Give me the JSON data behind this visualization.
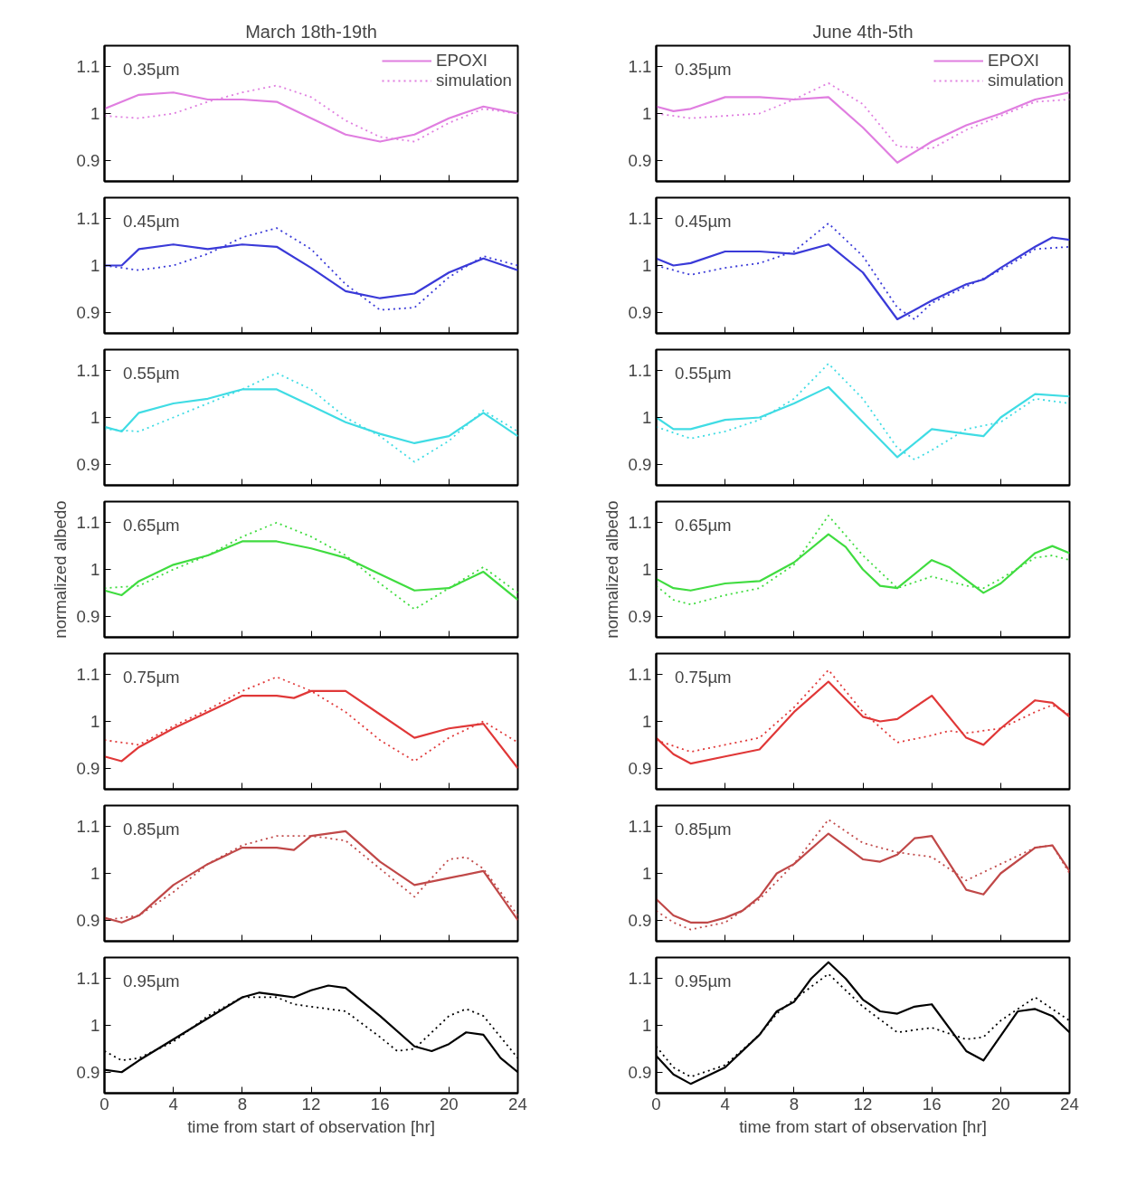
{
  "chart_data": [
    {
      "type": "line",
      "title": "March 18th-19th",
      "annotations": [
        "0.35µm"
      ],
      "xlim": [
        0,
        24
      ],
      "xticks": [
        0,
        4,
        8,
        12,
        16,
        20,
        24
      ],
      "ylim": [
        0.855,
        1.145
      ],
      "yticks": [
        0.9,
        1,
        1.1
      ],
      "tick_labels": "y",
      "legend": "top right",
      "grid": false,
      "series": [
        {
          "name": "EPOXI",
          "color": "#e07ee0",
          "line_style": "solid",
          "x": [
            0,
            2,
            4,
            6,
            8,
            10,
            12,
            14,
            16,
            18,
            20,
            22,
            24
          ],
          "values": [
            1.01,
            1.04,
            1.045,
            1.03,
            1.03,
            1.025,
            0.99,
            0.955,
            0.94,
            0.955,
            0.99,
            1.015,
            1.0
          ]
        },
        {
          "name": "simulation",
          "color": "#e07ee0",
          "line_style": "dotted",
          "x": [
            0,
            2,
            4,
            6,
            8,
            10,
            12,
            14,
            16,
            18,
            20,
            22,
            24
          ],
          "values": [
            0.995,
            0.99,
            1.0,
            1.025,
            1.045,
            1.06,
            1.035,
            0.985,
            0.95,
            0.94,
            0.98,
            1.01,
            1.0
          ]
        }
      ]
    },
    {
      "type": "line",
      "title": "June 4th-5th",
      "annotations": [
        "0.35µm"
      ],
      "xlim": [
        0,
        24
      ],
      "xticks": [
        0,
        4,
        8,
        12,
        16,
        20,
        24
      ],
      "ylim": [
        0.855,
        1.145
      ],
      "yticks": [
        0.9,
        1,
        1.1
      ],
      "tick_labels": "y",
      "legend": "top right",
      "grid": false,
      "series": [
        {
          "name": "EPOXI",
          "color": "#e07ee0",
          "line_style": "solid",
          "x": [
            0,
            1,
            2,
            4,
            6,
            8,
            10,
            12,
            14,
            16,
            18,
            20,
            22,
            24
          ],
          "values": [
            1.015,
            1.005,
            1.01,
            1.035,
            1.035,
            1.03,
            1.035,
            0.97,
            0.895,
            0.94,
            0.975,
            1.0,
            1.03,
            1.045
          ]
        },
        {
          "name": "simulation",
          "color": "#e07ee0",
          "line_style": "dotted",
          "x": [
            0,
            2,
            4,
            6,
            8,
            10,
            12,
            14,
            16,
            18,
            20,
            22,
            24
          ],
          "values": [
            1.0,
            0.99,
            0.995,
            1.0,
            1.03,
            1.065,
            1.02,
            0.93,
            0.925,
            0.965,
            0.995,
            1.025,
            1.03
          ]
        }
      ]
    },
    {
      "type": "line",
      "annotations": [
        "0.45µm"
      ],
      "xlim": [
        0,
        24
      ],
      "xticks": [
        0,
        4,
        8,
        12,
        16,
        20,
        24
      ],
      "ylim": [
        0.855,
        1.145
      ],
      "yticks": [
        0.9,
        1,
        1.1
      ],
      "tick_labels": "y",
      "grid": false,
      "series": [
        {
          "color": "#3a3ad8",
          "line_style": "solid",
          "x": [
            0,
            1,
            2,
            4,
            6,
            8,
            10,
            12,
            14,
            16,
            18,
            20,
            22,
            24
          ],
          "values": [
            1.0,
            1.0,
            1.035,
            1.045,
            1.035,
            1.045,
            1.04,
            0.995,
            0.945,
            0.93,
            0.94,
            0.985,
            1.015,
            0.99
          ]
        },
        {
          "color": "#3a3ad8",
          "line_style": "dotted",
          "x": [
            0,
            2,
            4,
            6,
            8,
            10,
            12,
            14,
            16,
            18,
            20,
            22,
            24
          ],
          "values": [
            1.0,
            0.99,
            1.0,
            1.025,
            1.06,
            1.08,
            1.035,
            0.96,
            0.905,
            0.91,
            0.975,
            1.02,
            1.0
          ]
        }
      ]
    },
    {
      "type": "line",
      "annotations": [
        "0.45µm"
      ],
      "xlim": [
        0,
        24
      ],
      "xticks": [
        0,
        4,
        8,
        12,
        16,
        20,
        24
      ],
      "ylim": [
        0.855,
        1.145
      ],
      "yticks": [
        0.9,
        1,
        1.1
      ],
      "tick_labels": "y",
      "grid": false,
      "series": [
        {
          "color": "#3a3ad8",
          "line_style": "solid",
          "x": [
            0,
            1,
            2,
            4,
            6,
            8,
            10,
            12,
            14,
            16,
            18,
            19,
            20,
            22,
            23,
            24
          ],
          "values": [
            1.015,
            1.0,
            1.005,
            1.03,
            1.03,
            1.025,
            1.045,
            0.985,
            0.885,
            0.925,
            0.96,
            0.97,
            0.995,
            1.04,
            1.06,
            1.055
          ]
        },
        {
          "color": "#3a3ad8",
          "line_style": "dotted",
          "x": [
            0,
            2,
            4,
            6,
            8,
            10,
            12,
            14,
            15,
            16,
            18,
            20,
            22,
            24
          ],
          "values": [
            1.0,
            0.98,
            0.995,
            1.005,
            1.03,
            1.09,
            1.02,
            0.91,
            0.885,
            0.92,
            0.955,
            0.99,
            1.035,
            1.04
          ]
        }
      ]
    },
    {
      "type": "line",
      "annotations": [
        "0.55µm"
      ],
      "xlim": [
        0,
        24
      ],
      "xticks": [
        0,
        4,
        8,
        12,
        16,
        20,
        24
      ],
      "ylim": [
        0.855,
        1.145
      ],
      "yticks": [
        0.9,
        1,
        1.1
      ],
      "tick_labels": "y",
      "grid": false,
      "series": [
        {
          "color": "#40dce4",
          "line_style": "solid",
          "x": [
            0,
            1,
            2,
            4,
            6,
            8,
            10,
            12,
            14,
            16,
            18,
            20,
            22,
            24
          ],
          "values": [
            0.98,
            0.97,
            1.01,
            1.03,
            1.04,
            1.06,
            1.06,
            1.025,
            0.99,
            0.965,
            0.945,
            0.96,
            1.01,
            0.96
          ]
        },
        {
          "color": "#40dce4",
          "line_style": "dotted",
          "x": [
            0,
            2,
            4,
            6,
            8,
            10,
            12,
            14,
            16,
            18,
            20,
            22,
            24
          ],
          "values": [
            0.975,
            0.97,
            1.0,
            1.03,
            1.06,
            1.095,
            1.06,
            1.0,
            0.96,
            0.905,
            0.95,
            1.015,
            0.97
          ]
        }
      ]
    },
    {
      "type": "line",
      "annotations": [
        "0.55µm"
      ],
      "xlim": [
        0,
        24
      ],
      "xticks": [
        0,
        4,
        8,
        12,
        16,
        20,
        24
      ],
      "ylim": [
        0.855,
        1.145
      ],
      "yticks": [
        0.9,
        1,
        1.1
      ],
      "tick_labels": "y",
      "grid": false,
      "series": [
        {
          "color": "#40dce4",
          "line_style": "solid",
          "x": [
            0,
            1,
            2,
            4,
            6,
            8,
            10,
            12,
            14,
            16,
            18,
            19,
            20,
            22,
            24
          ],
          "values": [
            1.0,
            0.975,
            0.975,
            0.995,
            1.0,
            1.03,
            1.065,
            0.99,
            0.915,
            0.975,
            0.965,
            0.96,
            1.0,
            1.05,
            1.045
          ]
        },
        {
          "color": "#40dce4",
          "line_style": "dotted",
          "x": [
            0,
            2,
            4,
            6,
            8,
            10,
            12,
            14,
            15,
            16,
            18,
            20,
            22,
            24
          ],
          "values": [
            0.98,
            0.955,
            0.97,
            0.995,
            1.04,
            1.115,
            1.04,
            0.935,
            0.91,
            0.93,
            0.975,
            0.99,
            1.04,
            1.03
          ]
        }
      ]
    },
    {
      "type": "line",
      "ylabel": "normalized albedo",
      "annotations": [
        "0.65µm"
      ],
      "xlim": [
        0,
        24
      ],
      "xticks": [
        0,
        4,
        8,
        12,
        16,
        20,
        24
      ],
      "ylim": [
        0.855,
        1.145
      ],
      "yticks": [
        0.9,
        1,
        1.1
      ],
      "tick_labels": "y",
      "grid": false,
      "series": [
        {
          "color": "#40dc40",
          "line_style": "solid",
          "x": [
            0,
            1,
            2,
            4,
            6,
            8,
            10,
            12,
            14,
            16,
            18,
            20,
            22,
            24
          ],
          "values": [
            0.955,
            0.945,
            0.975,
            1.01,
            1.03,
            1.06,
            1.06,
            1.045,
            1.025,
            0.99,
            0.955,
            0.96,
            0.995,
            0.935
          ]
        },
        {
          "color": "#40dc40",
          "line_style": "dotted",
          "x": [
            0,
            2,
            4,
            6,
            8,
            10,
            12,
            14,
            16,
            18,
            20,
            22,
            24
          ],
          "values": [
            0.96,
            0.965,
            1.0,
            1.03,
            1.07,
            1.1,
            1.07,
            1.03,
            0.97,
            0.915,
            0.96,
            1.005,
            0.95
          ]
        }
      ]
    },
    {
      "type": "line",
      "ylabel": "normalized albedo",
      "annotations": [
        "0.65µm"
      ],
      "xlim": [
        0,
        24
      ],
      "xticks": [
        0,
        4,
        8,
        12,
        16,
        20,
        24
      ],
      "ylim": [
        0.855,
        1.145
      ],
      "yticks": [
        0.9,
        1,
        1.1
      ],
      "tick_labels": "y",
      "grid": false,
      "series": [
        {
          "color": "#40dc40",
          "line_style": "solid",
          "x": [
            0,
            1,
            2,
            4,
            6,
            8,
            10,
            11,
            12,
            13,
            14,
            16,
            17,
            19,
            20,
            22,
            23,
            24
          ],
          "values": [
            0.98,
            0.96,
            0.955,
            0.97,
            0.975,
            1.015,
            1.075,
            1.048,
            1.0,
            0.965,
            0.96,
            1.02,
            1.005,
            0.95,
            0.97,
            1.035,
            1.05,
            1.035
          ]
        },
        {
          "color": "#40dc40",
          "line_style": "dotted",
          "x": [
            0,
            1,
            2,
            4,
            6,
            8,
            10,
            12,
            14,
            16,
            18,
            19,
            20,
            22,
            23,
            24
          ],
          "values": [
            0.965,
            0.935,
            0.925,
            0.945,
            0.96,
            1.01,
            1.115,
            1.03,
            0.96,
            0.985,
            0.965,
            0.96,
            0.98,
            1.025,
            1.03,
            1.02
          ]
        }
      ]
    },
    {
      "type": "line",
      "annotations": [
        "0.75µm"
      ],
      "xlim": [
        0,
        24
      ],
      "xticks": [
        0,
        4,
        8,
        12,
        16,
        20,
        24
      ],
      "ylim": [
        0.855,
        1.145
      ],
      "yticks": [
        0.9,
        1,
        1.1
      ],
      "tick_labels": "y",
      "grid": false,
      "series": [
        {
          "color": "#e03838",
          "line_style": "solid",
          "x": [
            0,
            1,
            2,
            4,
            6,
            8,
            10,
            11,
            12,
            14,
            16,
            18,
            20,
            22,
            24
          ],
          "values": [
            0.925,
            0.915,
            0.945,
            0.985,
            1.02,
            1.055,
            1.055,
            1.05,
            1.065,
            1.065,
            1.015,
            0.965,
            0.985,
            0.995,
            0.9
          ]
        },
        {
          "color": "#e03838",
          "line_style": "dotted",
          "x": [
            0,
            2,
            4,
            6,
            8,
            10,
            12,
            14,
            16,
            18,
            20,
            22,
            24
          ],
          "values": [
            0.96,
            0.95,
            0.99,
            1.025,
            1.065,
            1.095,
            1.065,
            1.02,
            0.96,
            0.915,
            0.965,
            1.0,
            0.955
          ]
        }
      ]
    },
    {
      "type": "line",
      "annotations": [
        "0.75µm"
      ],
      "xlim": [
        0,
        24
      ],
      "xticks": [
        0,
        4,
        8,
        12,
        16,
        20,
        24
      ],
      "ylim": [
        0.855,
        1.145
      ],
      "yticks": [
        0.9,
        1,
        1.1
      ],
      "tick_labels": "y",
      "grid": false,
      "series": [
        {
          "color": "#e03838",
          "line_style": "solid",
          "x": [
            0,
            1,
            2,
            4,
            6,
            8,
            10,
            12,
            13,
            14,
            16,
            18,
            19,
            20,
            22,
            23,
            24
          ],
          "values": [
            0.965,
            0.93,
            0.91,
            0.925,
            0.94,
            1.02,
            1.085,
            1.01,
            1.0,
            1.005,
            1.055,
            0.965,
            0.95,
            0.985,
            1.045,
            1.04,
            1.01
          ]
        },
        {
          "color": "#e03838",
          "line_style": "dotted",
          "x": [
            0,
            2,
            4,
            6,
            8,
            10,
            12,
            14,
            16,
            17,
            18,
            20,
            22,
            23,
            24
          ],
          "values": [
            0.96,
            0.935,
            0.95,
            0.965,
            1.03,
            1.11,
            1.02,
            0.955,
            0.97,
            0.98,
            0.975,
            0.985,
            1.02,
            1.035,
            1.015
          ]
        }
      ]
    },
    {
      "type": "line",
      "annotations": [
        "0.85µm"
      ],
      "xlim": [
        0,
        24
      ],
      "xticks": [
        0,
        4,
        8,
        12,
        16,
        20,
        24
      ],
      "ylim": [
        0.855,
        1.145
      ],
      "yticks": [
        0.9,
        1,
        1.1
      ],
      "tick_labels": "y",
      "grid": false,
      "series": [
        {
          "color": "#c04848",
          "line_style": "solid",
          "x": [
            0,
            1,
            2,
            4,
            6,
            8,
            10,
            11,
            12,
            14,
            16,
            18,
            20,
            22,
            24
          ],
          "values": [
            0.905,
            0.895,
            0.91,
            0.975,
            1.02,
            1.055,
            1.055,
            1.05,
            1.08,
            1.09,
            1.025,
            0.975,
            0.99,
            1.005,
            0.9
          ]
        },
        {
          "color": "#c04848",
          "line_style": "dotted",
          "x": [
            0,
            2,
            4,
            6,
            8,
            10,
            12,
            14,
            16,
            18,
            20,
            21,
            22,
            24
          ],
          "values": [
            0.9,
            0.91,
            0.96,
            1.02,
            1.06,
            1.08,
            1.08,
            1.07,
            1.01,
            0.95,
            1.03,
            1.035,
            1.01,
            0.91
          ]
        }
      ]
    },
    {
      "type": "line",
      "annotations": [
        "0.85µm"
      ],
      "xlim": [
        0,
        24
      ],
      "xticks": [
        0,
        4,
        8,
        12,
        16,
        20,
        24
      ],
      "ylim": [
        0.855,
        1.145
      ],
      "yticks": [
        0.9,
        1,
        1.1
      ],
      "tick_labels": "y",
      "grid": false,
      "series": [
        {
          "color": "#c04848",
          "line_style": "solid",
          "x": [
            0,
            1,
            2,
            3,
            4,
            5,
            6,
            7,
            8,
            10,
            12,
            13,
            14,
            15,
            16,
            18,
            19,
            20,
            22,
            23,
            24
          ],
          "values": [
            0.945,
            0.91,
            0.895,
            0.895,
            0.905,
            0.92,
            0.95,
            1.0,
            1.02,
            1.085,
            1.03,
            1.025,
            1.04,
            1.075,
            1.08,
            0.965,
            0.955,
            1.0,
            1.055,
            1.06,
            1.005
          ]
        },
        {
          "color": "#c04848",
          "line_style": "dotted",
          "x": [
            0,
            1,
            2,
            4,
            6,
            8,
            10,
            12,
            14,
            16,
            18,
            20,
            22,
            23,
            24
          ],
          "values": [
            0.92,
            0.895,
            0.88,
            0.895,
            0.945,
            1.02,
            1.115,
            1.065,
            1.045,
            1.035,
            0.985,
            1.02,
            1.055,
            1.06,
            1.0
          ]
        }
      ]
    },
    {
      "type": "line",
      "xlabel": "time from start of observation [hr]",
      "annotations": [
        "0.95µm"
      ],
      "xlim": [
        0,
        24
      ],
      "xticks": [
        0,
        4,
        8,
        12,
        16,
        20,
        24
      ],
      "ylim": [
        0.855,
        1.145
      ],
      "yticks": [
        0.9,
        1,
        1.1
      ],
      "grid": false,
      "series": [
        {
          "color": "#000000",
          "line_style": "solid",
          "x": [
            0,
            1,
            2,
            4,
            6,
            8,
            9,
            10,
            11,
            12,
            13,
            14,
            16,
            18,
            19,
            20,
            21,
            22,
            23,
            24
          ],
          "values": [
            0.905,
            0.9,
            0.925,
            0.97,
            1.015,
            1.06,
            1.07,
            1.065,
            1.06,
            1.075,
            1.085,
            1.08,
            1.02,
            0.955,
            0.945,
            0.96,
            0.985,
            0.98,
            0.93,
            0.9
          ]
        },
        {
          "color": "#000000",
          "line_style": "dotted",
          "x": [
            0,
            1,
            2,
            4,
            6,
            8,
            10,
            11,
            12,
            14,
            16,
            17,
            18,
            20,
            21,
            22,
            24
          ],
          "values": [
            0.945,
            0.925,
            0.93,
            0.965,
            1.02,
            1.06,
            1.06,
            1.045,
            1.04,
            1.03,
            0.975,
            0.945,
            0.95,
            1.02,
            1.035,
            1.02,
            0.93
          ]
        }
      ]
    },
    {
      "type": "line",
      "xlabel": "time from start of observation [hr]",
      "annotations": [
        "0.95µm"
      ],
      "xlim": [
        0,
        24
      ],
      "xticks": [
        0,
        4,
        8,
        12,
        16,
        20,
        24
      ],
      "ylim": [
        0.855,
        1.145
      ],
      "yticks": [
        0.9,
        1,
        1.1
      ],
      "grid": false,
      "series": [
        {
          "color": "#000000",
          "line_style": "solid",
          "x": [
            0,
            1,
            2,
            4,
            6,
            7,
            8,
            9,
            10,
            11,
            12,
            13,
            14,
            15,
            16,
            18,
            19,
            21,
            22,
            23,
            24
          ],
          "values": [
            0.935,
            0.895,
            0.875,
            0.91,
            0.98,
            1.03,
            1.05,
            1.1,
            1.135,
            1.1,
            1.055,
            1.03,
            1.025,
            1.04,
            1.045,
            0.945,
            0.925,
            1.03,
            1.035,
            1.02,
            0.985
          ]
        },
        {
          "color": "#000000",
          "line_style": "dotted",
          "x": [
            0,
            1,
            2,
            4,
            6,
            7,
            8,
            10,
            12,
            14,
            16,
            18,
            19,
            20,
            22,
            24
          ],
          "values": [
            0.955,
            0.91,
            0.89,
            0.915,
            0.98,
            1.025,
            1.055,
            1.11,
            1.04,
            0.985,
            0.995,
            0.97,
            0.975,
            1.01,
            1.06,
            1.01
          ]
        }
      ]
    }
  ]
}
